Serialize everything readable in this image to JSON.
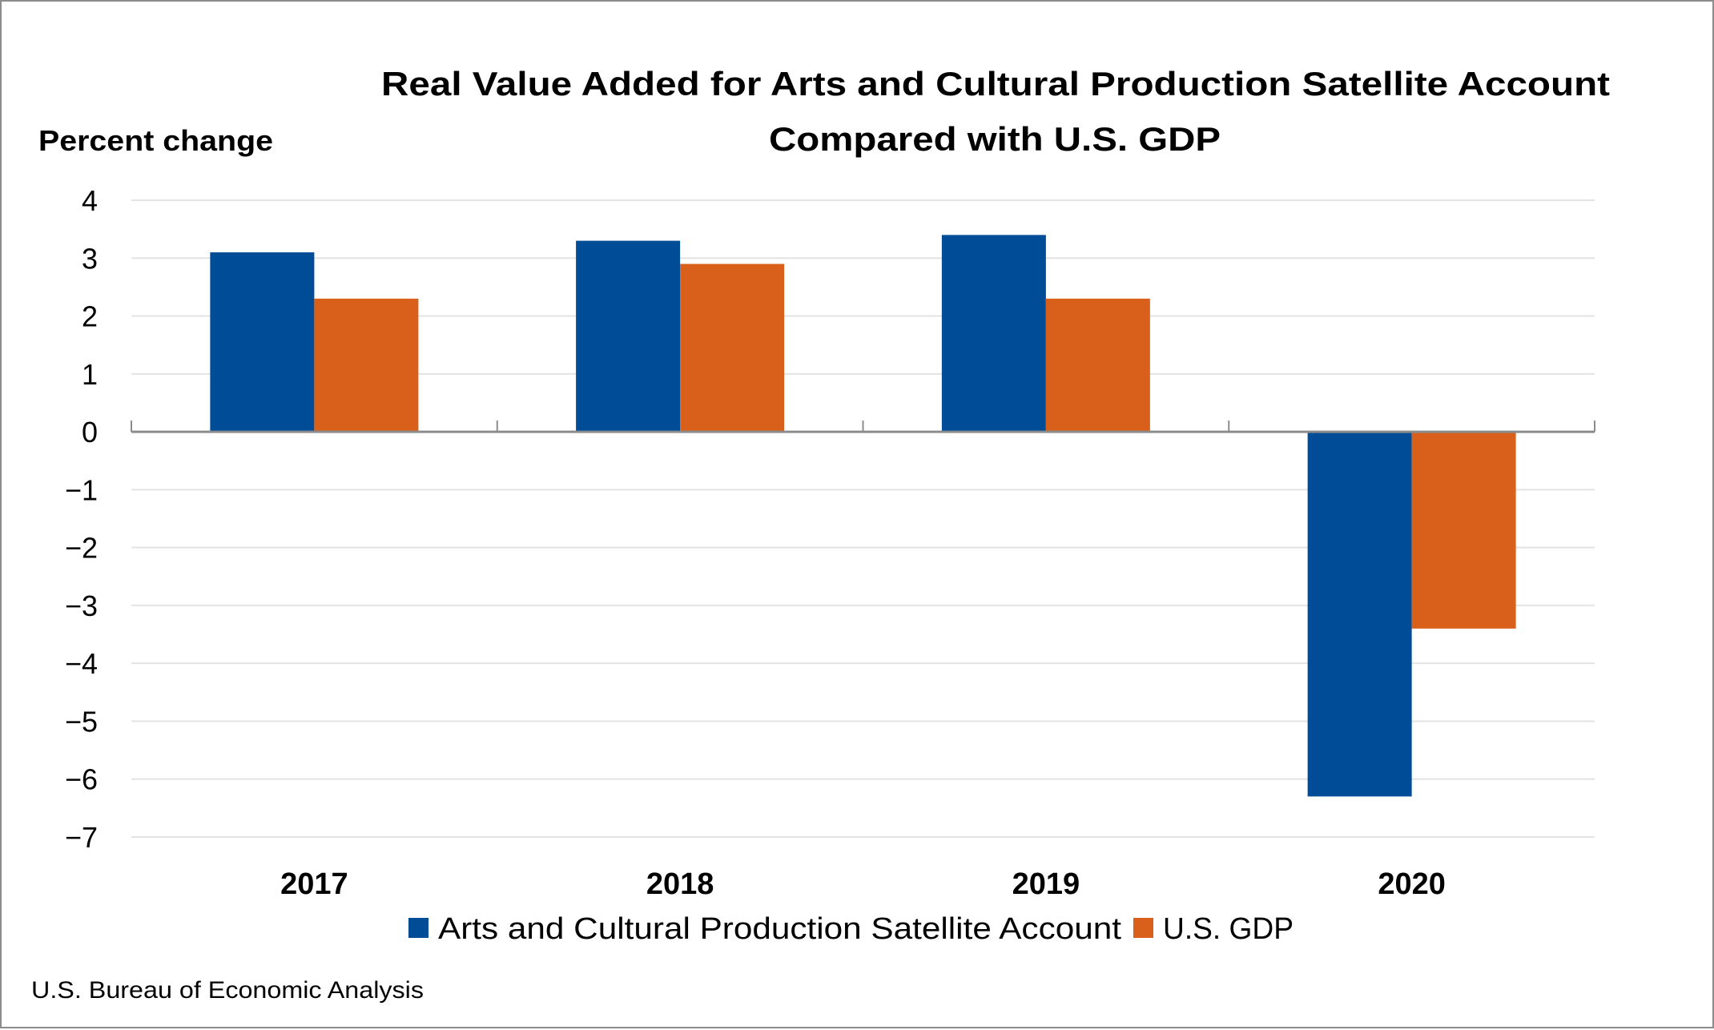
{
  "chart_data": {
    "type": "bar",
    "title": [
      "Real Value Added for Arts and Cultural Production Satellite Account",
      "Compared with U.S. GDP"
    ],
    "ylabel": "Percent change",
    "xlabel": "",
    "categories": [
      "2017",
      "2018",
      "2019",
      "2020"
    ],
    "series": [
      {
        "name": "Arts and Cultural Production Satellite Account",
        "color": "#004c97",
        "values": [
          3.1,
          3.3,
          3.4,
          -6.3
        ]
      },
      {
        "name": "U.S. GDP",
        "color": "#d9601a",
        "values": [
          2.3,
          2.9,
          2.3,
          -3.4
        ]
      }
    ],
    "ylim": [
      -7,
      4
    ],
    "yticks": [
      "4",
      "3",
      "2",
      "1",
      "0",
      "−1",
      "−2",
      "−3",
      "−4",
      "−5",
      "−6",
      "−7"
    ],
    "ytick_values": [
      4,
      3,
      2,
      1,
      0,
      -1,
      -2,
      -3,
      -4,
      -5,
      -6,
      -7
    ],
    "grid": true,
    "legend_position": "bottom"
  },
  "source": "U.S. Bureau of Economic Analysis"
}
